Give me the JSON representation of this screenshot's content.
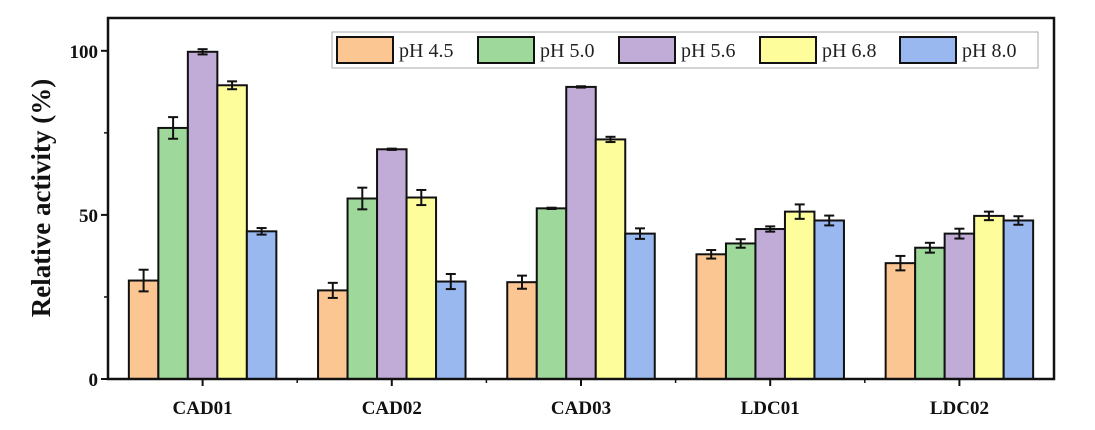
{
  "chart_data": {
    "type": "bar",
    "title": "",
    "xlabel": "",
    "ylabel": "Relative activity (%)",
    "ylim": [
      0,
      110
    ],
    "yticks": [
      0,
      50,
      100
    ],
    "yminor_ticks": [
      25,
      75
    ],
    "grid": false,
    "legend_placement": "top-right",
    "categories": [
      "CAD01",
      "CAD02",
      "CAD03",
      "LDC01",
      "LDC02"
    ],
    "series": [
      {
        "name": "pH 4.5",
        "color": "#fcc692",
        "values": [
          30,
          27,
          29.5,
          38,
          35.3
        ],
        "errors": [
          3.3,
          2.3,
          2,
          1.3,
          2.2
        ]
      },
      {
        "name": "pH 5.0",
        "color": "#9ed89a",
        "values": [
          76.5,
          55,
          52,
          41.3,
          40
        ],
        "errors": [
          3.3,
          3.3,
          0.2,
          1.3,
          1.5
        ]
      },
      {
        "name": "pH 5.6",
        "color": "#c0acd6",
        "values": [
          99.7,
          70,
          89,
          45.7,
          44.3
        ],
        "errors": [
          0.8,
          0.2,
          0.2,
          0.8,
          1.5
        ]
      },
      {
        "name": "pH 6.8",
        "color": "#fdfd9b",
        "values": [
          89.5,
          55.3,
          73,
          51,
          49.7
        ],
        "errors": [
          1.2,
          2.3,
          0.8,
          2.2,
          1.3
        ]
      },
      {
        "name": "pH 8.0",
        "color": "#98b8ef",
        "values": [
          45,
          29.7,
          44.3,
          48.3,
          48.3
        ],
        "errors": [
          1,
          2.3,
          1.6,
          1.5,
          1.3
        ]
      }
    ]
  }
}
